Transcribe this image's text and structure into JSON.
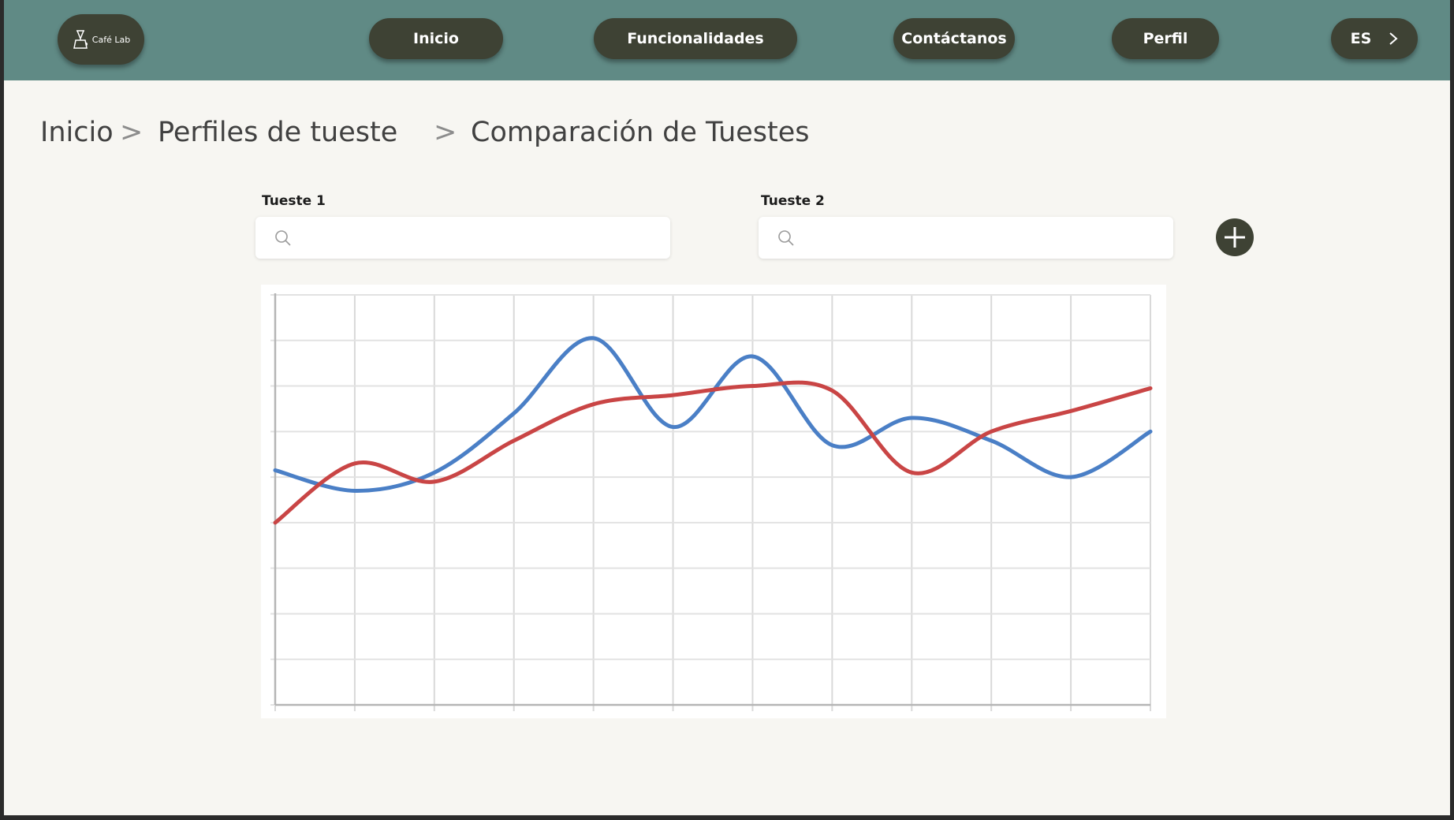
{
  "nav": {
    "logo_text": "Café Lab",
    "items": [
      "Inicio",
      "Funcionalidades",
      "Contáctanos",
      "Perfil"
    ],
    "language": "ES"
  },
  "breadcrumb": [
    "Inicio",
    "Perfiles de tueste",
    "Comparación de Tuestes"
  ],
  "breadcrumb_separator": ">",
  "fields": {
    "tueste1": {
      "label": "Tueste 1",
      "placeholder": ""
    },
    "tueste2": {
      "label": "Tueste 2",
      "placeholder": ""
    }
  },
  "colors": {
    "header": "#608a85",
    "pill": "#3e4234",
    "background": "#f7f6f2",
    "series_blue": "#4a7fc6",
    "series_red": "#c94545"
  },
  "chart_data": {
    "type": "line",
    "x": [
      0,
      1,
      2,
      3,
      4,
      5,
      6,
      7,
      8,
      9,
      10,
      11
    ],
    "xlim": [
      0,
      11
    ],
    "ylim": [
      0,
      9
    ],
    "grid": true,
    "series": [
      {
        "color": "#4a7fc6",
        "values": [
          5.15,
          4.7,
          5.1,
          6.4,
          8.05,
          6.1,
          7.65,
          5.7,
          6.3,
          5.8,
          5.0,
          6.0
        ]
      },
      {
        "color": "#c94545",
        "values": [
          4.0,
          5.3,
          4.9,
          5.8,
          6.6,
          6.8,
          7.0,
          6.9,
          5.1,
          6.0,
          6.45,
          6.95
        ]
      }
    ]
  }
}
